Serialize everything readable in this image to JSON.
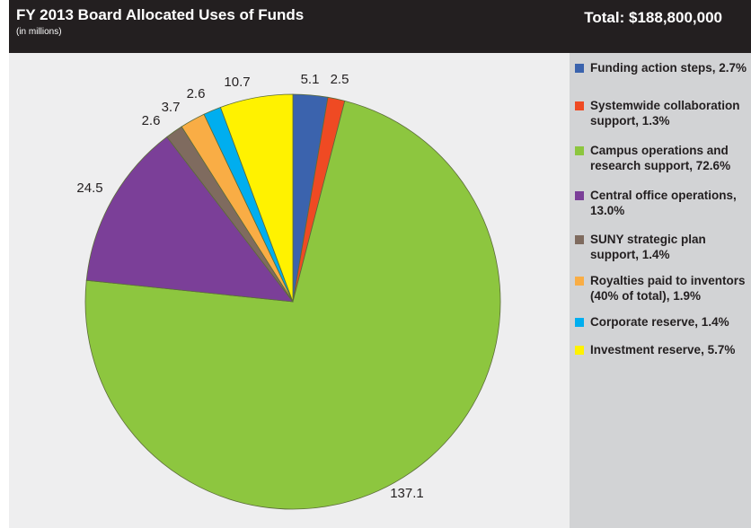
{
  "header": {
    "title": "FY 2013 Board Allocated Uses of Funds",
    "subtitle": "(in millions)",
    "total": "Total: $188,800,000"
  },
  "colors": {
    "header_bg": "#231f20",
    "plot_bg": "#eeeeef",
    "legend_bg": "#d2d3d5"
  },
  "chart_data": {
    "type": "pie",
    "title": "FY 2013 Board Allocated Uses of Funds",
    "subtitle": "(in millions)",
    "start": "12 o'clock, clockwise",
    "slices": [
      {
        "label": "Funding action steps, 2.7%",
        "value": 5.1,
        "value_label": "5.1",
        "color": "#3b63ad"
      },
      {
        "label": "Systemwide collaboration support, 1.3%",
        "value": 2.5,
        "value_label": "2.5",
        "color": "#ef4a23"
      },
      {
        "label": "Campus operations and research support, 72.6%",
        "value": 137.1,
        "value_label": "137.1",
        "color": "#8dc63f"
      },
      {
        "label": "Central office operations, 13.0%",
        "value": 24.5,
        "value_label": "24.5",
        "color": "#7b3f98"
      },
      {
        "label": "SUNY strategic plan support, 1.4%",
        "value": 2.6,
        "value_label": "2.6",
        "color": "#7f6b5f"
      },
      {
        "label": "Royalties paid to inventors (40% of total), 1.9%",
        "value": 3.7,
        "value_label": "3.7",
        "color": "#f9ad45"
      },
      {
        "label": "Corporate reserve, 1.4%",
        "value": 2.6,
        "value_label": "2.6",
        "color": "#00aeef"
      },
      {
        "label": "Investment reserve, 5.7%",
        "value": 10.7,
        "value_label": "10.7",
        "color": "#fff200"
      }
    ]
  }
}
